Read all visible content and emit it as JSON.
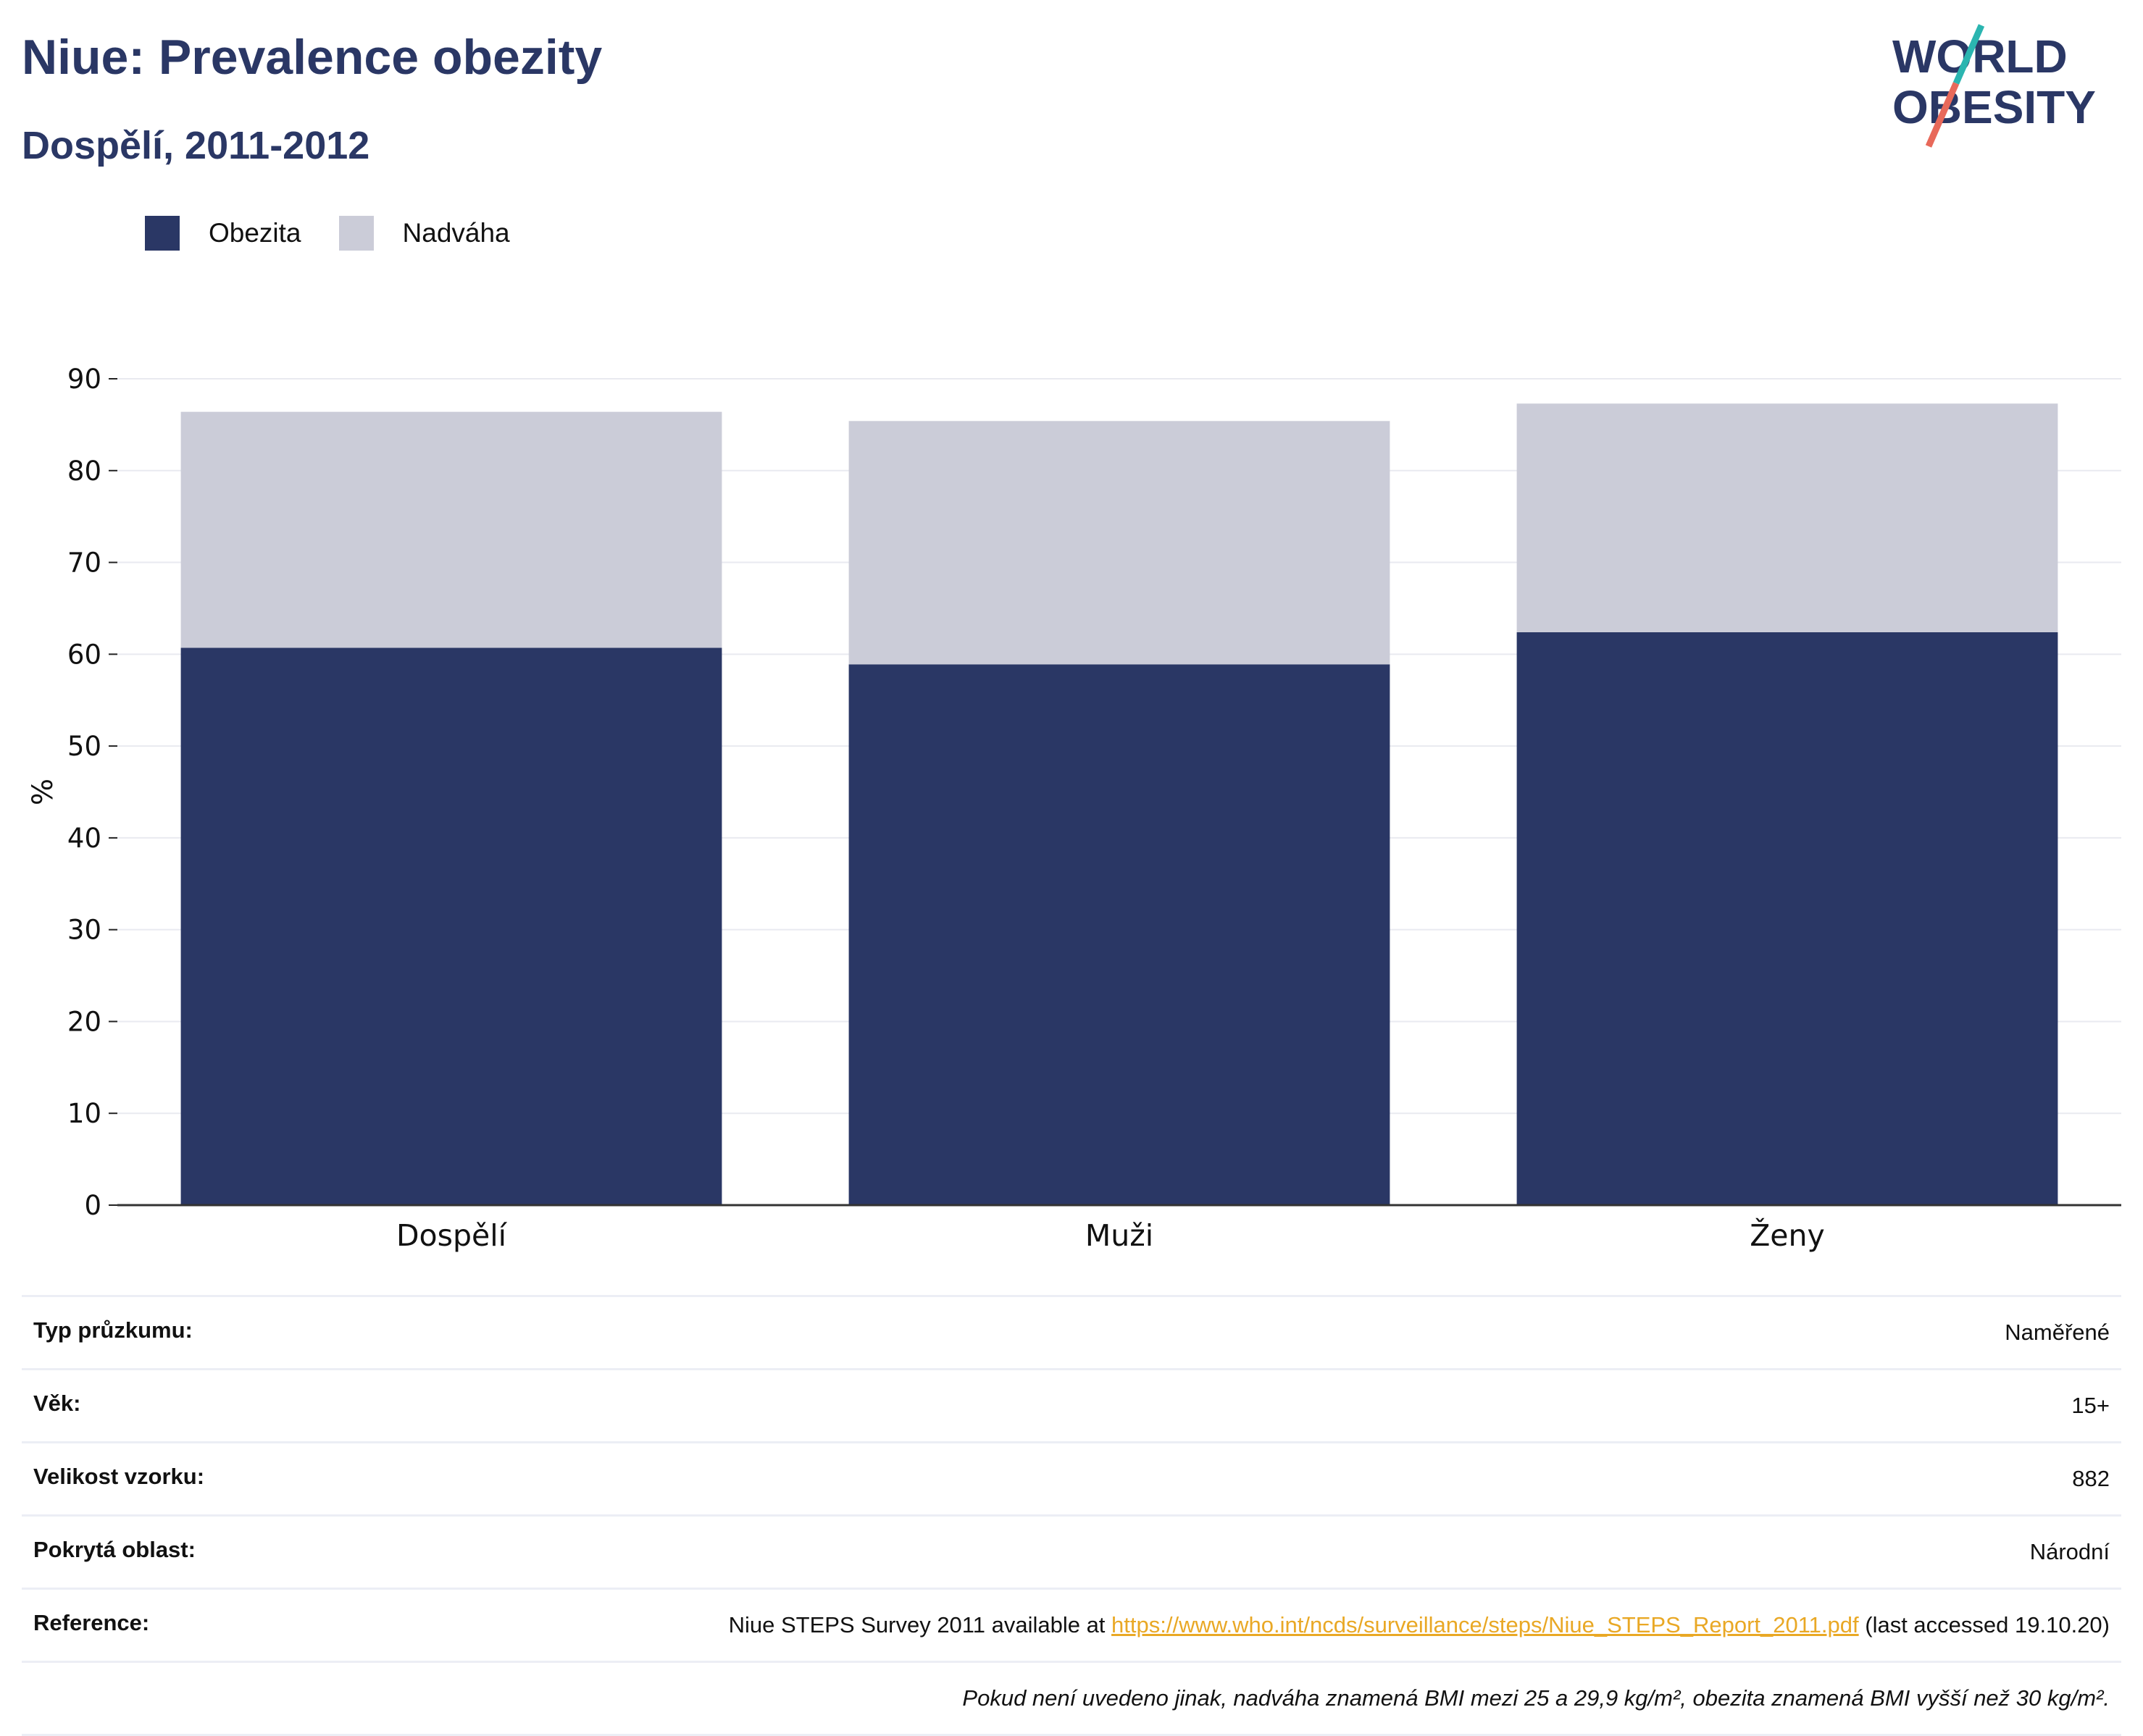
{
  "header": {
    "title": "Niue: Prevalence obezity",
    "subtitle": "Dospělí, 2011-2012"
  },
  "logo": {
    "line1": "WORLD",
    "line2": "OBESITY",
    "icon": "slash-logo-icon"
  },
  "colors": {
    "obesity": "#2a3765",
    "overweight": "#cbccd8",
    "accent_teal": "#2bb5b0",
    "accent_red": "#e8695a",
    "link": "#e9a825"
  },
  "chart_data": {
    "type": "bar",
    "stacked": true,
    "categories": [
      "Dospělí",
      "Muži",
      "Ženy"
    ],
    "series": [
      {
        "name": "Obezita",
        "values": [
          60.7,
          58.9,
          62.4
        ],
        "color": "#2a3765"
      },
      {
        "name": "Nadváha",
        "values": [
          25.7,
          26.5,
          24.9
        ],
        "color": "#cbccd8"
      }
    ],
    "ylabel": "%",
    "ylim": [
      0,
      90
    ],
    "yticks": [
      0,
      10,
      20,
      30,
      40,
      50,
      60,
      70,
      80,
      90
    ],
    "grid": true,
    "legend": "top-left"
  },
  "info": {
    "rows": [
      {
        "key": "Typ průzkumu:",
        "value": "Naměřené"
      },
      {
        "key": "Věk:",
        "value": "15+"
      },
      {
        "key": "Velikost vzorku:",
        "value": "882"
      },
      {
        "key": "Pokrytá oblast:",
        "value": "Národní"
      }
    ],
    "reference": {
      "key": "Reference:",
      "prefix": "Niue STEPS Survey 2011 available at ",
      "link": "https://www.who.int/ncds/surveillance/steps/Niue_STEPS_Report_2011.pdf",
      "suffix": " (last accessed 19.10.20)"
    },
    "note": "Pokud není uvedeno jinak, nadváha znamená BMI mezi 25 a 29,9 kg/m², obezita znamená BMI vyšší než 30 kg/m²."
  }
}
